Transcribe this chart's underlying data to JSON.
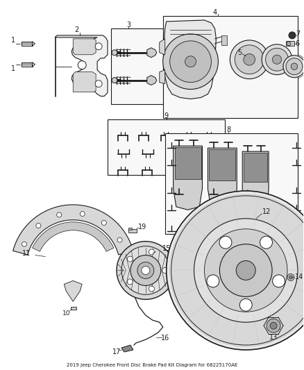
{
  "title": "2019 Jeep Cherokee Front Disc Brake Pad Kit Diagram for 68225170AE",
  "bg_color": "#ffffff",
  "lc": "#1a1a1a",
  "figsize": [
    4.38,
    5.33
  ],
  "dpi": 100,
  "label_fontsize": 6.5
}
